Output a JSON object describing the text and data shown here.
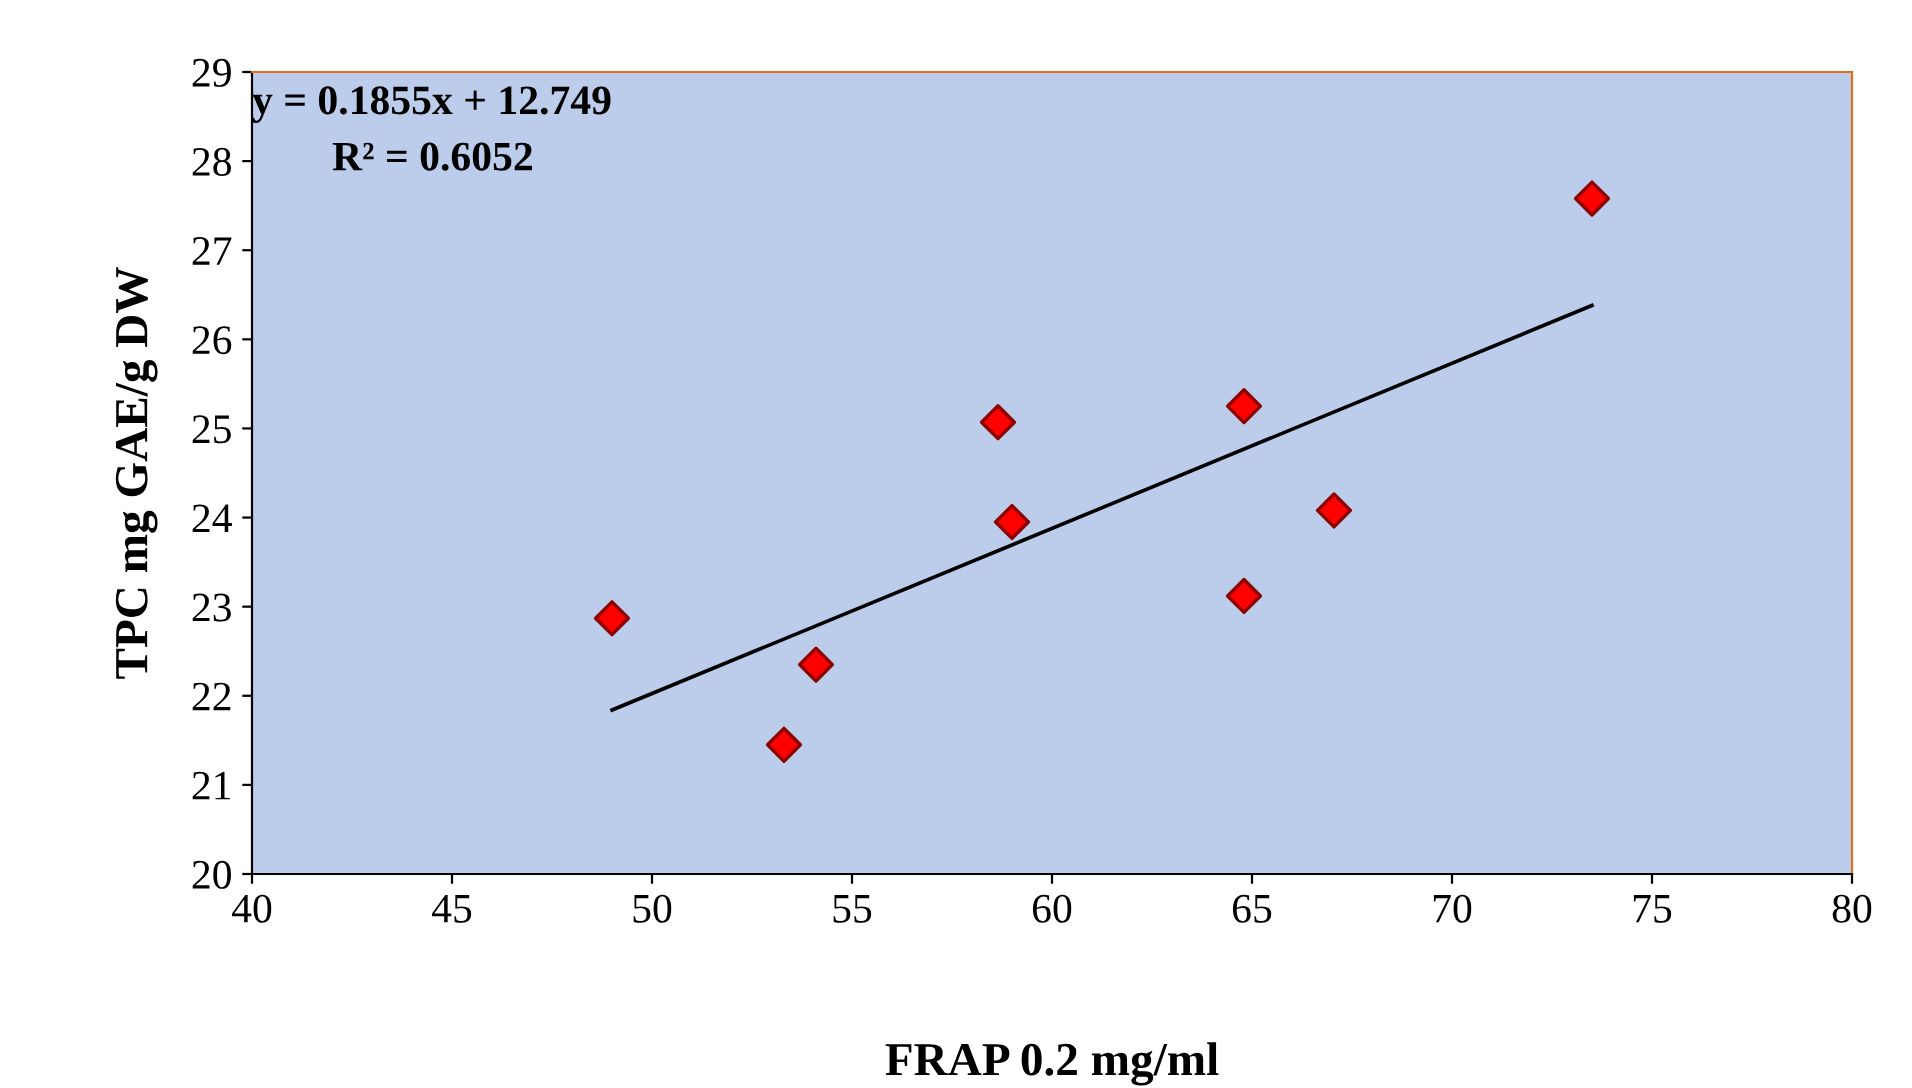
{
  "chart_data": {
    "type": "scatter",
    "xlabel": "FRAP 0.2 mg/ml",
    "ylabel": "TPC mg GAE/g DW",
    "annotations": [
      "y = 0.1855x + 12.749",
      "R² = 0.6052"
    ],
    "series": [
      {
        "color": "#ff0000",
        "marker": "diamond",
        "x": [
          53.3,
          49.0,
          54.1,
          58.65,
          59.0,
          64.8,
          64.8,
          67.05,
          73.5
        ],
        "values": [
          21.45,
          22.87,
          22.35,
          25.07,
          23.95,
          23.12,
          25.25,
          24.08,
          27.58
        ]
      },
      {
        "type": "line",
        "color": "#000000",
        "marker": "none",
        "x": [
          49.0,
          73.5
        ],
        "values": [
          21.84,
          26.38
        ]
      }
    ],
    "xlim": [
      40,
      80
    ],
    "xticks": [
      40,
      45,
      50,
      55,
      60,
      65,
      70,
      75,
      80
    ],
    "ylim": [
      20,
      29
    ],
    "yticks": [
      20,
      21,
      22,
      23,
      24,
      25,
      26,
      27,
      28,
      29
    ],
    "grid": false,
    "legend": false
  }
}
